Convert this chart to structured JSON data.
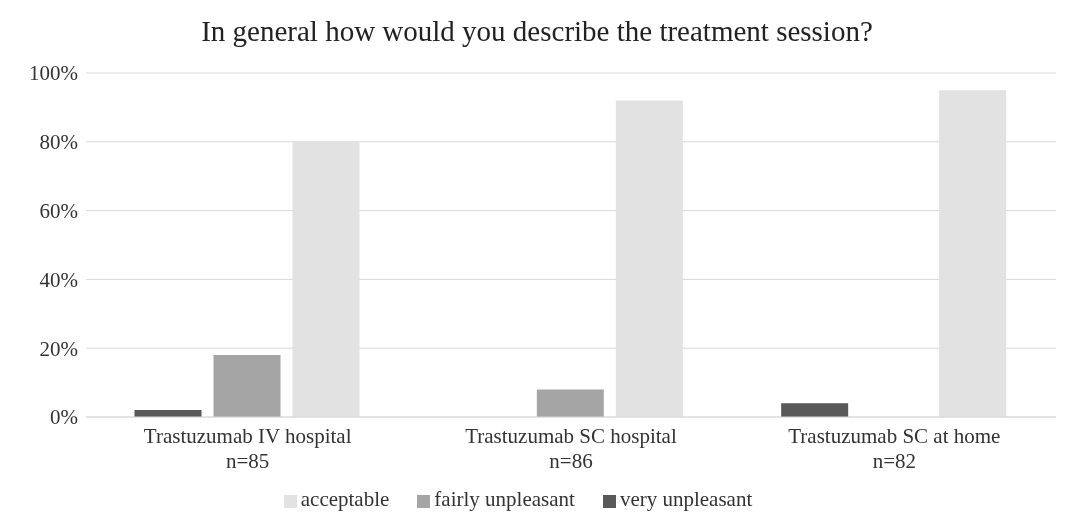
{
  "chart_data": {
    "type": "bar",
    "title": "In general how would you describe the treatment session?",
    "categories": [
      "Trastuzumab IV hospital\nn=85",
      "Trastuzumab SC hospital\nn=86",
      "Trastuzumab SC at home\nn=82"
    ],
    "series": [
      {
        "name": "very unpleasant",
        "color": "#595959",
        "values": [
          2,
          0,
          4
        ]
      },
      {
        "name": "fairly unpleasant",
        "color": "#a5a5a5",
        "values": [
          18,
          8,
          0
        ]
      },
      {
        "name": "acceptable",
        "color": "#e2e2e2",
        "values": [
          80,
          92,
          95
        ]
      }
    ],
    "ylim": [
      0,
      100
    ],
    "yticks": [
      {
        "value": 0,
        "label": "0%"
      },
      {
        "value": 20,
        "label": "20%"
      },
      {
        "value": 40,
        "label": "40%"
      },
      {
        "value": 60,
        "label": "60%"
      },
      {
        "value": 80,
        "label": "80%"
      },
      {
        "value": 100,
        "label": "100%"
      }
    ],
    "grid": "y",
    "legend": "bottom"
  }
}
